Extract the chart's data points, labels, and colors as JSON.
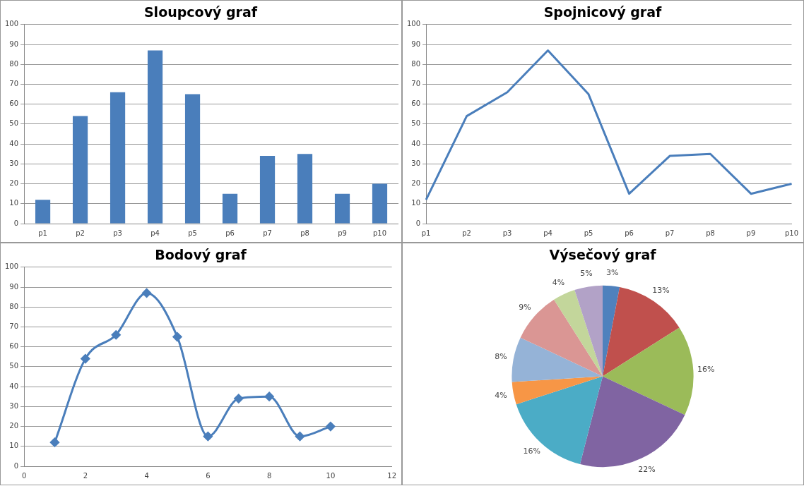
{
  "chart_data": [
    {
      "type": "bar",
      "title": "Sloupcový graf",
      "categories": [
        "p1",
        "p2",
        "p3",
        "p4",
        "p5",
        "p6",
        "p7",
        "p8",
        "p9",
        "p10"
      ],
      "values": [
        12,
        54,
        66,
        87,
        65,
        15,
        34,
        35,
        15,
        20
      ],
      "color": "#4a7ebb",
      "ylim": [
        0,
        100
      ],
      "yticks": [
        0,
        10,
        20,
        30,
        40,
        50,
        60,
        70,
        80,
        90,
        100
      ],
      "grid": "y",
      "legend": false
    },
    {
      "type": "line",
      "title": "Spojnicový graf",
      "categories": [
        "p1",
        "p2",
        "p3",
        "p4",
        "p5",
        "p6",
        "p7",
        "p8",
        "p9",
        "p10"
      ],
      "values": [
        12,
        54,
        66,
        87,
        65,
        15,
        34,
        35,
        15,
        20
      ],
      "color": "#4a7ebb",
      "ylim": [
        0,
        100
      ],
      "yticks": [
        0,
        10,
        20,
        30,
        40,
        50,
        60,
        70,
        80,
        90,
        100
      ],
      "grid": "y",
      "legend": false,
      "marker": "none"
    },
    {
      "type": "line",
      "title": "Bodový graf",
      "x": [
        1,
        2,
        3,
        4,
        5,
        6,
        7,
        8,
        9,
        10
      ],
      "values": [
        12,
        54,
        66,
        87,
        65,
        15,
        34,
        35,
        15,
        20
      ],
      "color": "#4a7ebb",
      "xlim": [
        0,
        12
      ],
      "xticks": [
        0,
        2,
        4,
        6,
        8,
        10,
        12
      ],
      "ylim": [
        0,
        100
      ],
      "yticks": [
        0,
        10,
        20,
        30,
        40,
        50,
        60,
        70,
        80,
        90,
        100
      ],
      "grid": "y",
      "legend": false,
      "marker": "diamond"
    },
    {
      "type": "pie",
      "title": "Výsečový graf",
      "categories": [
        null,
        null,
        null,
        null,
        null,
        null,
        null,
        null,
        null,
        null
      ],
      "values": [
        3,
        13,
        16,
        22,
        16,
        4,
        8,
        9,
        4,
        5
      ],
      "value_labels": [
        "3%",
        "13%",
        "16%",
        "22%",
        "16%",
        "4%",
        "8%",
        "9%",
        "4%",
        "5%"
      ],
      "colors": [
        "#4f81bd",
        "#c0504d",
        "#9bbb59",
        "#8064a2",
        "#4bacc6",
        "#f79646",
        "#95b3d7",
        "#da9694",
        "#c3d69b",
        "#b2a2c7"
      ],
      "legend": false
    }
  ]
}
